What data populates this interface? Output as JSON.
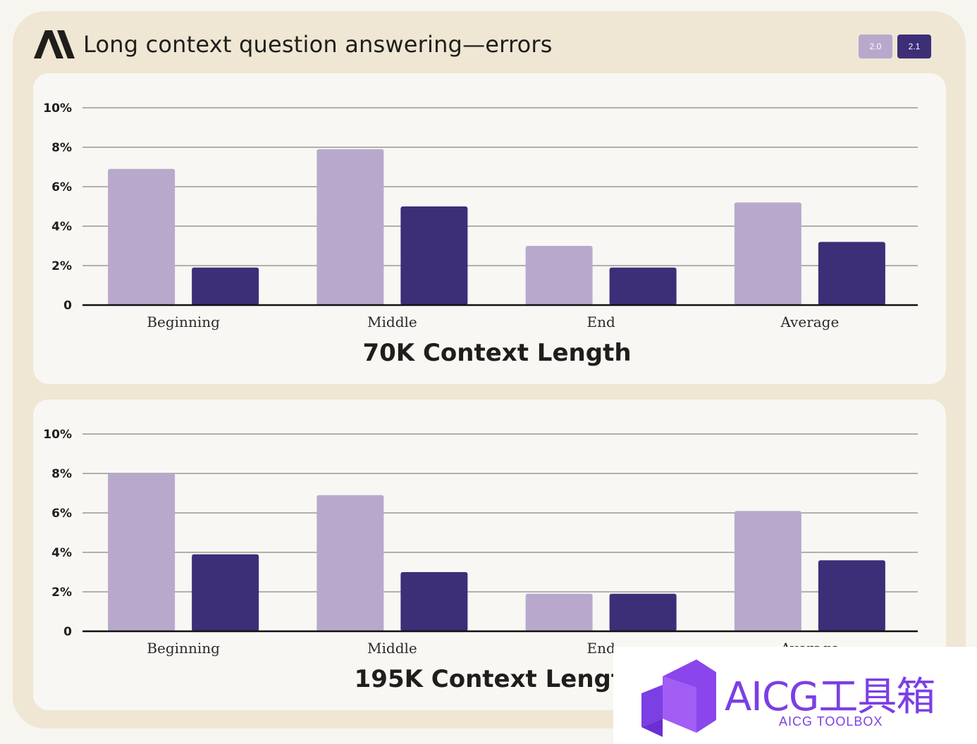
{
  "header": {
    "title": "Long context question answering—errors",
    "logo_icon": "anthropic-logo-icon"
  },
  "toggles": [
    {
      "label": "2.0",
      "color": "#b8a9cc"
    },
    {
      "label": "2.1",
      "color": "#3d2e78"
    }
  ],
  "chart_data": [
    {
      "type": "bar",
      "title": "70K Context Length",
      "categories": [
        "Beginning",
        "Middle",
        "End",
        "Average"
      ],
      "y_ticks": [
        "0",
        "2%",
        "4%",
        "6%",
        "8%",
        "10%"
      ],
      "ylim": [
        0,
        10
      ],
      "grid": true,
      "series": [
        {
          "name": "2.0",
          "color": "#b8a9cc",
          "values": [
            6.9,
            7.9,
            3.0,
            5.2
          ]
        },
        {
          "name": "2.1",
          "color": "#3d2e78",
          "values": [
            1.9,
            5.0,
            1.9,
            3.2
          ]
        }
      ]
    },
    {
      "type": "bar",
      "title": "195K Context Length",
      "categories": [
        "Beginning",
        "Middle",
        "End",
        "Average"
      ],
      "y_ticks": [
        "0",
        "2%",
        "4%",
        "6%",
        "8%",
        "10%"
      ],
      "ylim": [
        0,
        10
      ],
      "grid": true,
      "series": [
        {
          "name": "2.0",
          "color": "#b8a9cc",
          "values": [
            8.0,
            6.9,
            1.9,
            6.1
          ]
        },
        {
          "name": "2.1",
          "color": "#3d2e78",
          "values": [
            3.9,
            3.0,
            1.9,
            3.6
          ]
        }
      ]
    }
  ],
  "watermark": {
    "text": "AICG工具箱",
    "subtext": "AICG TOOLBOX",
    "color": "#7b3fe4"
  }
}
